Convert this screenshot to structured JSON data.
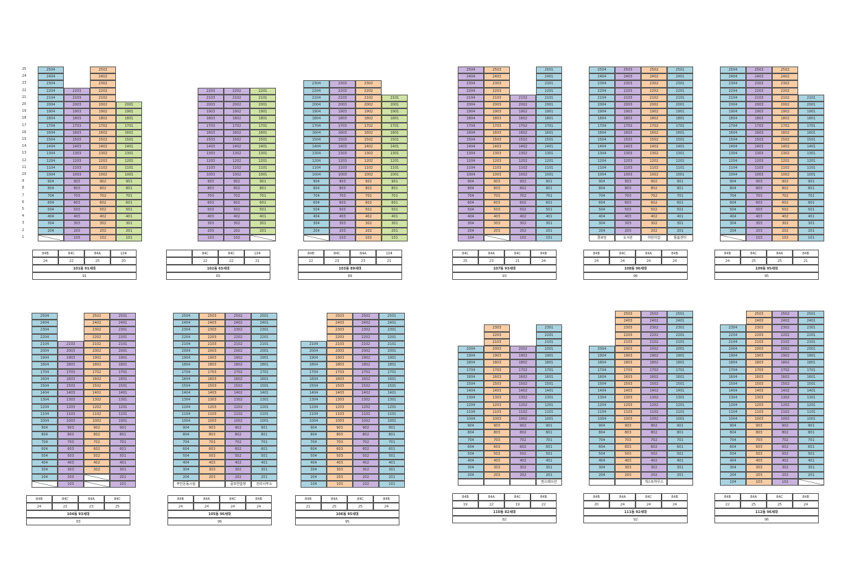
{
  "colors": {
    "84A": "#f8cda6",
    "84B": "#a9d3e0",
    "84C": "#c9b3de",
    "104": "#cfe3a4"
  },
  "floor_labels": [
    "25",
    "24",
    "23",
    "22",
    "21",
    "20",
    "19",
    "18",
    "17",
    "16",
    "15",
    "14",
    "13",
    "12",
    "11",
    "10",
    "9",
    "8",
    "7",
    "6",
    "5",
    "4",
    "3",
    "2",
    "1"
  ],
  "buildings": [
    {
      "title": "101동 91세대",
      "total": "91",
      "types": [
        "84B",
        "84C",
        "84A",
        "104"
      ],
      "counts": [
        "24",
        "22",
        "25",
        "20"
      ],
      "cols": [
        {
          "type": "84B",
          "top": 25,
          "void": [
            1
          ]
        },
        {
          "type": "84C",
          "top": 22,
          "void": []
        },
        {
          "type": "84A",
          "top": 25,
          "void": []
        },
        {
          "type": "104",
          "top": 20,
          "void": []
        }
      ],
      "facility": []
    },
    {
      "title": "102동 65세대",
      "total": "65",
      "types": [
        "",
        "84C",
        "84C",
        "104"
      ],
      "counts": [
        "",
        "22",
        "22",
        "21"
      ],
      "cols": [
        {
          "type": "blank",
          "top": 0,
          "void": []
        },
        {
          "type": "84C",
          "top": 22,
          "void": []
        },
        {
          "type": "84C",
          "top": 22,
          "void": []
        },
        {
          "type": "104",
          "top": 22,
          "void": [
            1
          ]
        }
      ],
      "facility": []
    },
    {
      "title": "103동 89세대",
      "total": "89",
      "types": [
        "84B",
        "84C",
        "84A",
        "104"
      ],
      "counts": [
        "22",
        "23",
        "23",
        "21"
      ],
      "cols": [
        {
          "type": "84B",
          "top": 23,
          "void": [
            1
          ]
        },
        {
          "type": "84C",
          "top": 23,
          "void": []
        },
        {
          "type": "84A",
          "top": 23,
          "void": []
        },
        {
          "type": "104",
          "top": 21,
          "void": []
        }
      ],
      "facility": []
    },
    {
      "title": "104동 93세대",
      "total": "93",
      "types": [
        "84B",
        "84C",
        "84A",
        "84C"
      ],
      "counts": [
        "24",
        "21",
        "23",
        "25"
      ],
      "cols": [
        {
          "type": "84B",
          "top": 25,
          "void": [
            1
          ]
        },
        {
          "type": "84C",
          "top": 21,
          "void": []
        },
        {
          "type": "84A",
          "top": 25,
          "void": [
            1,
            2
          ]
        },
        {
          "type": "84C",
          "top": 25,
          "void": []
        }
      ],
      "facility": []
    },
    {
      "title": "105동 96세대",
      "total": "96",
      "types": [
        "84B",
        "84A",
        "84C",
        "84B"
      ],
      "counts": [
        "24",
        "24",
        "24",
        "24"
      ],
      "cols": [
        {
          "type": "84B",
          "top": 25,
          "void": []
        },
        {
          "type": "84A",
          "top": 25,
          "void": []
        },
        {
          "type": "84C",
          "top": 25,
          "void": []
        },
        {
          "type": "84B",
          "top": 25,
          "void": []
        }
      ],
      "facility": [
        "주민운동시설",
        "",
        "골프연습장",
        "관리사무소"
      ]
    },
    {
      "title": "106동 95세대",
      "total": "95",
      "types": [
        "84B",
        "84A",
        "84C",
        "84B"
      ],
      "counts": [
        "21",
        "25",
        "25",
        "24"
      ],
      "cols": [
        {
          "type": "84B",
          "top": 21,
          "void": []
        },
        {
          "type": "84A",
          "top": 25,
          "void": []
        },
        {
          "type": "84C",
          "top": 25,
          "void": []
        },
        {
          "type": "84B",
          "top": 25,
          "void": []
        }
      ],
      "facility": []
    },
    {
      "title": "107동 93세대",
      "total": "93",
      "types": [
        "84C",
        "84A",
        "84C",
        "84B"
      ],
      "counts": [
        "25",
        "23",
        "21",
        "24"
      ],
      "cols": [
        {
          "type": "84C",
          "top": 25,
          "void": []
        },
        {
          "type": "84A",
          "top": 25,
          "void": [
            1
          ]
        },
        {
          "type": "84C",
          "top": 21,
          "void": []
        },
        {
          "type": "84B",
          "top": 25,
          "void": []
        }
      ],
      "facility": []
    },
    {
      "title": "108동 96세대",
      "total": "96",
      "types": [
        "84B",
        "84C",
        "84A",
        "84B"
      ],
      "counts": [
        "24",
        "24",
        "24",
        "24"
      ],
      "cols": [
        {
          "type": "84B",
          "top": 25,
          "void": []
        },
        {
          "type": "84C",
          "top": 25,
          "void": []
        },
        {
          "type": "84A",
          "top": 25,
          "void": []
        },
        {
          "type": "84B",
          "top": 25,
          "void": []
        }
      ],
      "facility": [
        "경로당",
        "도서관",
        "어린이집",
        "돌봄센터"
      ]
    },
    {
      "title": "109동 95세대",
      "total": "95",
      "types": [
        "84B",
        "84C",
        "84A",
        "84B"
      ],
      "counts": [
        "24",
        "25",
        "25",
        "21"
      ],
      "cols": [
        {
          "type": "84B",
          "top": 25,
          "void": [
            1
          ]
        },
        {
          "type": "84C",
          "top": 25,
          "void": []
        },
        {
          "type": "84A",
          "top": 25,
          "void": []
        },
        {
          "type": "84B",
          "top": 21,
          "void": []
        }
      ],
      "facility": []
    },
    {
      "title": "110동 82세대",
      "total": "82",
      "types": [
        "84B",
        "84A",
        "84C",
        "84B"
      ],
      "counts": [
        "19",
        "22",
        "19",
        "22"
      ],
      "cols": [
        {
          "type": "84B",
          "top": 20,
          "void": [
            1
          ]
        },
        {
          "type": "84A",
          "top": 23,
          "void": [
            1
          ]
        },
        {
          "type": "84C",
          "top": 20,
          "void": [
            1
          ]
        },
        {
          "type": "84B",
          "top": 23,
          "void": [
            1
          ]
        }
      ],
      "facility": [
        "",
        "",
        "",
        "맘스테이션"
      ]
    },
    {
      "title": "111동 92세대",
      "total": "92",
      "types": [
        "84B",
        "84A",
        "84C",
        "84B"
      ],
      "counts": [
        "20",
        "24",
        "24",
        "24"
      ],
      "cols": [
        {
          "type": "84B",
          "top": 20,
          "void": []
        },
        {
          "type": "84A",
          "top": 25,
          "void": []
        },
        {
          "type": "84C",
          "top": 25,
          "void": []
        },
        {
          "type": "84B",
          "top": 25,
          "void": []
        }
      ],
      "facility": [
        "",
        "",
        "게스트하우스",
        ""
      ]
    },
    {
      "title": "112동 96세대",
      "total": "96",
      "types": [
        "84B",
        "84A",
        "84C",
        "84B"
      ],
      "counts": [
        "22",
        "25",
        "25",
        "24"
      ],
      "cols": [
        {
          "type": "84B",
          "top": 23,
          "void": []
        },
        {
          "type": "84A",
          "top": 25,
          "void": []
        },
        {
          "type": "84C",
          "top": 25,
          "void": []
        },
        {
          "type": "84B",
          "top": 25,
          "void": [
            1
          ]
        }
      ],
      "facility": []
    }
  ]
}
